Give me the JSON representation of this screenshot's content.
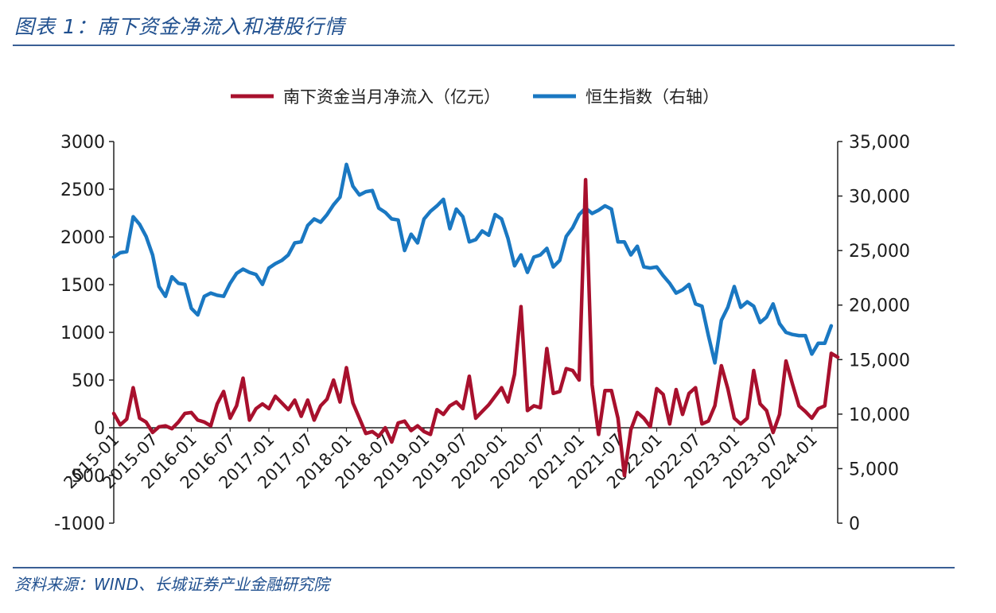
{
  "header": {
    "title": "图表 1：南下资金净流入和港股行情"
  },
  "footer": {
    "source": "资料来源：WIND、长城证券产业金融研究院"
  },
  "colors": {
    "red_series": "#a8102d",
    "blue_series": "#1a78c2",
    "axis": "#222222",
    "text_accent": "#20508f"
  },
  "chart_data": {
    "type": "line",
    "title": "",
    "xlabel": "",
    "ylabel": "",
    "y_left_ticks": [
      "3000",
      "2500",
      "2000",
      "1500",
      "1000",
      "500",
      "0",
      "-500",
      "-1000"
    ],
    "y_right_ticks": [
      "35,000",
      "30,000",
      "25,000",
      "20,000",
      "15,000",
      "10,000",
      "5,000",
      "0"
    ],
    "ylim_left": [
      -1000,
      3000
    ],
    "ylim_right": [
      0,
      35000
    ],
    "x_tick_labels": [
      "2015-01",
      "2015-07",
      "2016-01",
      "2016-07",
      "2017-01",
      "2017-07",
      "2018-01",
      "2018-07",
      "2019-01",
      "2019-07",
      "2020-01",
      "2020-07",
      "2021-01",
      "2021-07",
      "2022-01",
      "2022-07",
      "2023-01",
      "2023-07",
      "2024-01"
    ],
    "legend_position": "top-center",
    "series": [
      {
        "name": "南下资金当月净流入（亿元）",
        "axis": "left",
        "values": [
          150,
          30,
          90,
          420,
          100,
          60,
          -50,
          10,
          20,
          -10,
          60,
          150,
          160,
          80,
          60,
          20,
          250,
          380,
          100,
          230,
          520,
          80,
          200,
          250,
          200,
          330,
          260,
          190,
          290,
          120,
          290,
          80,
          230,
          300,
          500,
          270,
          630,
          260,
          100,
          -60,
          -40,
          -90,
          0,
          -150,
          50,
          70,
          -30,
          20,
          -40,
          -70,
          190,
          140,
          230,
          270,
          200,
          540,
          100,
          170,
          240,
          330,
          420,
          270,
          560,
          1270,
          180,
          230,
          210,
          830,
          360,
          380,
          620,
          600,
          500,
          2600,
          450,
          -70,
          390,
          390,
          100,
          -500,
          -20,
          160,
          100,
          10,
          410,
          350,
          40,
          400,
          140,
          360,
          420,
          40,
          70,
          230,
          650,
          410,
          100,
          40,
          100,
          600,
          250,
          180,
          -50,
          140,
          700,
          460,
          230,
          170,
          100,
          200,
          230,
          780,
          740
        ]
      },
      {
        "name": "恒生指数（右轴）",
        "axis": "right",
        "values": [
          24400,
          24800,
          24900,
          28100,
          27400,
          26300,
          24600,
          21700,
          20800,
          22600,
          22000,
          21900,
          19700,
          19100,
          20800,
          21100,
          20900,
          20800,
          22000,
          22900,
          23300,
          23000,
          22800,
          21900,
          23400,
          23800,
          24100,
          24600,
          25700,
          25800,
          27300,
          27900,
          27600,
          28300,
          29200,
          29900,
          32900,
          30900,
          30100,
          30400,
          30500,
          28900,
          28500,
          27900,
          27800,
          25000,
          26500,
          25700,
          27900,
          28600,
          29100,
          29700,
          27000,
          28800,
          28100,
          25800,
          26000,
          26800,
          26400,
          28300,
          27900,
          26100,
          23600,
          24600,
          23000,
          24400,
          24600,
          25200,
          23500,
          24100,
          26300,
          27100,
          28300,
          28900,
          28400,
          28700,
          29100,
          28800,
          25800,
          25800,
          24600,
          25400,
          23500,
          23400,
          23500,
          22700,
          22000,
          21100,
          21400,
          21900,
          20100,
          19900,
          17200,
          14700,
          18600,
          19800,
          21700,
          19800,
          20300,
          19900,
          18400,
          18900,
          20100,
          18300,
          17500,
          17300,
          17200,
          17200,
          15500,
          16500,
          16500,
          18100
        ]
      }
    ]
  }
}
